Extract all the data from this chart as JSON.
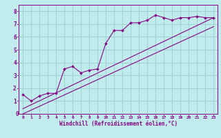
{
  "bg_color": "#c0ecee",
  "grid_color": "#99cccc",
  "line_color": "#880088",
  "xlim": [
    -0.5,
    23.5
  ],
  "ylim": [
    0,
    8.5
  ],
  "xlabel": "Windchill (Refroidissement éolien,°C)",
  "xticks": [
    0,
    1,
    2,
    3,
    4,
    5,
    6,
    7,
    8,
    9,
    10,
    11,
    12,
    13,
    14,
    15,
    16,
    17,
    18,
    19,
    20,
    21,
    22,
    23
  ],
  "yticks": [
    1,
    2,
    3,
    4,
    5,
    6,
    7,
    8
  ],
  "data_x": [
    0,
    1,
    2,
    3,
    4,
    5,
    6,
    7,
    8,
    9,
    10,
    11,
    12,
    13,
    14,
    15,
    16,
    17,
    18,
    19,
    20,
    21,
    22,
    23
  ],
  "data_y": [
    1.5,
    1.0,
    1.4,
    1.6,
    1.6,
    3.5,
    3.7,
    3.2,
    3.4,
    3.5,
    5.5,
    6.5,
    6.5,
    7.1,
    7.1,
    7.3,
    7.7,
    7.5,
    7.3,
    7.5,
    7.5,
    7.6,
    7.5,
    7.5
  ],
  "trend1_x": [
    0,
    23
  ],
  "trend1_y": [
    0.4,
    7.5
  ],
  "trend2_x": [
    0,
    23
  ],
  "trend2_y": [
    0.0,
    6.8
  ]
}
